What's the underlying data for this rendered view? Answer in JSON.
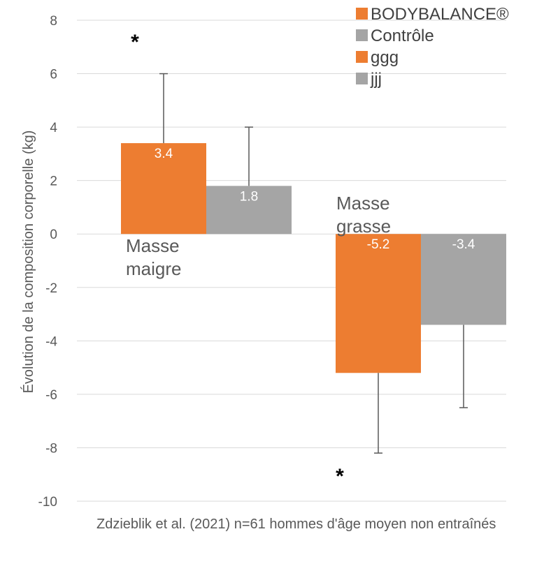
{
  "chart_data": {
    "type": "bar",
    "ylabel": "Évolution de la composition corporelle (kg)",
    "ylim": [
      -10,
      8
    ],
    "yticks": [
      8,
      6,
      4,
      2,
      0,
      -2,
      -4,
      -6,
      -8,
      -10
    ],
    "grid": true,
    "legend_position": "top-right",
    "legend": [
      {
        "label": "BODYBALANCE®",
        "color": "#ED7D31"
      },
      {
        "label": "Contrôle",
        "color": "#A5A5A5"
      },
      {
        "label": "ggg",
        "color": "#ED7D31"
      },
      {
        "label": "jjj",
        "color": "#A5A5A5"
      }
    ],
    "categories": [
      {
        "lines": [
          "Masse",
          "maigre"
        ]
      },
      {
        "lines": [
          "Masse",
          "grasse"
        ]
      }
    ],
    "series": [
      {
        "name": "BODYBALANCE®",
        "color": "#ED7D31",
        "values": [
          3.4,
          -5.2
        ],
        "labels": [
          "3.4",
          "-5.2"
        ],
        "error_tip": [
          6,
          -8.2
        ]
      },
      {
        "name": "Contrôle",
        "color": "#A5A5A5",
        "values": [
          1.8,
          -3.4
        ],
        "labels": [
          "1.8",
          "-3.4"
        ],
        "error_tip": [
          4,
          -6.5
        ]
      }
    ],
    "significance": [
      {
        "text": "*",
        "category": 0
      },
      {
        "text": "*",
        "category": 1
      }
    ]
  },
  "caption": "Zdzieblik et al. (2021) n=61 hommes d'âge moyen non entraînés"
}
